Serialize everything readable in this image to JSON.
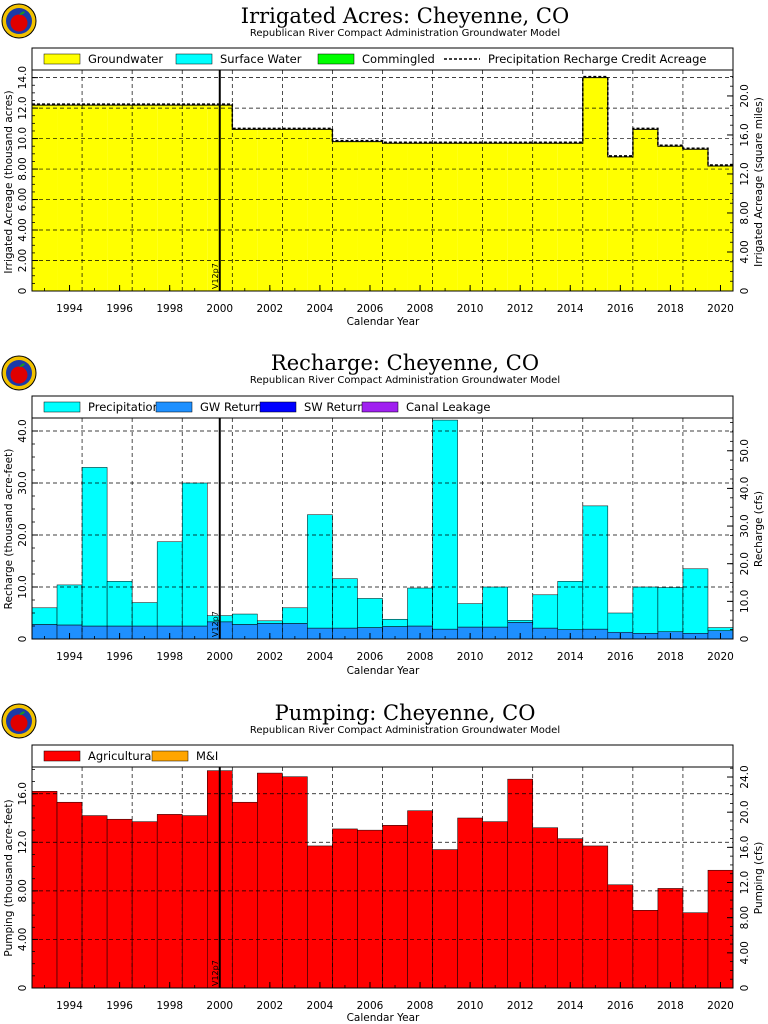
{
  "chart_data": [
    {
      "type": "area",
      "title": "Irrigated Acres: Cheyenne, CO",
      "subtitle": "Republican River Compact Administration Groundwater Model",
      "xlabel": "Calendar Year",
      "ylabel": "Irrigated Acreage (thousand acres)",
      "ylabel_right": "Irrigated Acreage (square miles)",
      "xlim": [
        1993,
        2021
      ],
      "ylim": [
        0,
        14.5
      ],
      "ylim_right": [
        0,
        22.66
      ],
      "yticks": [
        "0",
        "2.00",
        "4.00",
        "6.00",
        "8.00",
        "10.0",
        "12.0",
        "14.0"
      ],
      "yticks_right": [
        "0",
        "4.00",
        "8.00",
        "12.0",
        "16.0",
        "20.0"
      ],
      "xticks": [
        "1994",
        "1996",
        "1998",
        "2000",
        "2002",
        "2004",
        "2006",
        "2008",
        "2010",
        "2012",
        "2014",
        "2016",
        "2018",
        "2020"
      ],
      "marker": {
        "year": 2000.5,
        "label": "V12p7"
      },
      "grid": true,
      "legend": "top",
      "years": [
        1993,
        1994,
        1995,
        1996,
        1997,
        1998,
        1999,
        2000,
        2001,
        2002,
        2003,
        2004,
        2005,
        2006,
        2007,
        2008,
        2009,
        2010,
        2011,
        2012,
        2013,
        2014,
        2015,
        2016,
        2017,
        2018,
        2019,
        2020
      ],
      "series": [
        {
          "name": "Groundwater",
          "color": "#ffff00",
          "values": [
            12.2,
            12.2,
            12.2,
            12.2,
            12.2,
            12.2,
            12.2,
            12.2,
            10.6,
            10.6,
            10.6,
            10.6,
            9.8,
            9.8,
            9.7,
            9.7,
            9.7,
            9.7,
            9.7,
            9.7,
            9.7,
            9.7,
            14.0,
            8.8,
            10.6,
            9.5,
            9.3,
            8.2
          ]
        },
        {
          "name": "Surface Water",
          "color": "#00ffff",
          "values": [
            0,
            0,
            0,
            0,
            0,
            0,
            0,
            0,
            0,
            0,
            0,
            0,
            0,
            0,
            0,
            0,
            0,
            0,
            0,
            0,
            0,
            0,
            0,
            0,
            0,
            0,
            0,
            0
          ]
        },
        {
          "name": "Commingled",
          "color": "#00ff00",
          "values": [
            0,
            0,
            0,
            0,
            0,
            0,
            0,
            0,
            0,
            0,
            0,
            0,
            0,
            0,
            0,
            0,
            0,
            0,
            0,
            0,
            0,
            0,
            0,
            0,
            0,
            0,
            0,
            0
          ]
        },
        {
          "name": "Precipitation Recharge Credit Acreage",
          "color": "#000000",
          "style": "dashed",
          "values": [
            12.2,
            12.2,
            12.2,
            12.2,
            12.2,
            12.2,
            12.2,
            12.2,
            10.6,
            10.6,
            10.6,
            10.6,
            9.8,
            9.8,
            9.7,
            9.7,
            9.7,
            9.7,
            9.7,
            9.7,
            9.7,
            9.7,
            14.0,
            8.8,
            10.6,
            9.5,
            9.3,
            8.2
          ]
        }
      ]
    },
    {
      "type": "bar",
      "title": "Recharge: Cheyenne, CO",
      "subtitle": "Republican River Compact Administration Groundwater Model",
      "xlabel": "Calendar Year",
      "ylabel": "Recharge (thousand acre-feet)",
      "ylabel_right": "Recharge (cfs)",
      "xlim": [
        1993,
        2021
      ],
      "ylim": [
        0,
        42.5
      ],
      "ylim_right": [
        0,
        58.7
      ],
      "yticks": [
        "0",
        "10.0",
        "20.0",
        "30.0",
        "40.0"
      ],
      "yticks_right": [
        "0",
        "10.0",
        "20.0",
        "30.0",
        "40.0",
        "50.0"
      ],
      "xticks": [
        "1994",
        "1996",
        "1998",
        "2000",
        "2002",
        "2004",
        "2006",
        "2008",
        "2010",
        "2012",
        "2014",
        "2016",
        "2018",
        "2020"
      ],
      "marker": {
        "year": 2000.5,
        "label": "V12p7"
      },
      "grid": true,
      "legend": "top",
      "years": [
        1993,
        1994,
        1995,
        1996,
        1997,
        1998,
        1999,
        2000,
        2001,
        2002,
        2003,
        2004,
        2005,
        2006,
        2007,
        2008,
        2009,
        2010,
        2011,
        2012,
        2013,
        2014,
        2015,
        2016,
        2017,
        2018,
        2019,
        2020
      ],
      "stacked": true,
      "series": [
        {
          "name": "GW Returns",
          "color": "#1e90ff",
          "values": [
            2.8,
            2.7,
            2.5,
            2.5,
            2.5,
            2.5,
            2.5,
            3.3,
            2.8,
            3.0,
            3.0,
            2.1,
            2.1,
            2.2,
            2.4,
            2.5,
            1.9,
            2.3,
            2.3,
            3.2,
            2.1,
            1.8,
            1.9,
            1.3,
            1.1,
            1.4,
            1.1,
            1.6
          ]
        },
        {
          "name": "Precipitation",
          "color": "#00ffff",
          "values": [
            3.2,
            7.7,
            30.5,
            8.6,
            4.5,
            16.2,
            27.5,
            1.2,
            2.0,
            0.5,
            3.0,
            21.8,
            9.5,
            5.6,
            1.4,
            7.3,
            40.2,
            4.5,
            7.7,
            0.4,
            6.4,
            9.3,
            23.7,
            3.7,
            8.9,
            8.5,
            12.4,
            0.6
          ]
        },
        {
          "name": "SW Returns",
          "color": "#0000ff",
          "values": [
            0,
            0,
            0,
            0,
            0,
            0,
            0,
            0,
            0,
            0,
            0,
            0,
            0,
            0,
            0,
            0,
            0,
            0,
            0,
            0,
            0,
            0,
            0,
            0,
            0,
            0,
            0,
            0
          ]
        },
        {
          "name": "Canal Leakage",
          "color": "#a020f0",
          "values": [
            0,
            0,
            0,
            0,
            0,
            0,
            0,
            0,
            0,
            0,
            0,
            0,
            0,
            0,
            0,
            0,
            0,
            0,
            0,
            0,
            0,
            0,
            0,
            0,
            0,
            0,
            0,
            0
          ]
        }
      ]
    },
    {
      "type": "bar",
      "title": "Pumping: Cheyenne, CO",
      "subtitle": "Republican River Compact Administration Groundwater Model",
      "xlabel": "Calendar Year",
      "ylabel": "Pumping (thousand acre-feet)",
      "ylabel_right": "Pumping (cfs)",
      "xlim": [
        1993,
        2021
      ],
      "ylim": [
        0,
        18.2
      ],
      "ylim_right": [
        0,
        25.14
      ],
      "yticks": [
        "0",
        "4.00",
        "8.00",
        "12.0",
        "16.0"
      ],
      "yticks_right": [
        "0",
        "4.00",
        "8.00",
        "12.0",
        "16.0",
        "20.0",
        "24.0"
      ],
      "xticks": [
        "1994",
        "1996",
        "1998",
        "2000",
        "2002",
        "2004",
        "2006",
        "2008",
        "2010",
        "2012",
        "2014",
        "2016",
        "2018",
        "2020"
      ],
      "marker": {
        "year": 2000.5,
        "label": "V12p7"
      },
      "grid": true,
      "legend": "top",
      "years": [
        1993,
        1994,
        1995,
        1996,
        1997,
        1998,
        1999,
        2000,
        2001,
        2002,
        2003,
        2004,
        2005,
        2006,
        2007,
        2008,
        2009,
        2010,
        2011,
        2012,
        2013,
        2014,
        2015,
        2016,
        2017,
        2018,
        2019,
        2020
      ],
      "stacked": true,
      "series": [
        {
          "name": "Agricultural",
          "color": "#ff0000",
          "values": [
            16.2,
            15.3,
            14.2,
            13.9,
            13.7,
            14.3,
            14.2,
            17.9,
            15.3,
            17.7,
            17.4,
            11.7,
            13.1,
            13.0,
            13.4,
            14.6,
            11.4,
            14.0,
            13.7,
            17.2,
            13.2,
            12.3,
            11.7,
            8.5,
            6.4,
            8.2,
            6.2,
            9.7
          ]
        },
        {
          "name": "M&I",
          "color": "#ffa500",
          "values": [
            0,
            0,
            0,
            0,
            0,
            0,
            0,
            0,
            0,
            0,
            0,
            0,
            0,
            0,
            0,
            0,
            0,
            0,
            0,
            0,
            0,
            0,
            0,
            0,
            0,
            0,
            0,
            0
          ]
        }
      ]
    }
  ]
}
